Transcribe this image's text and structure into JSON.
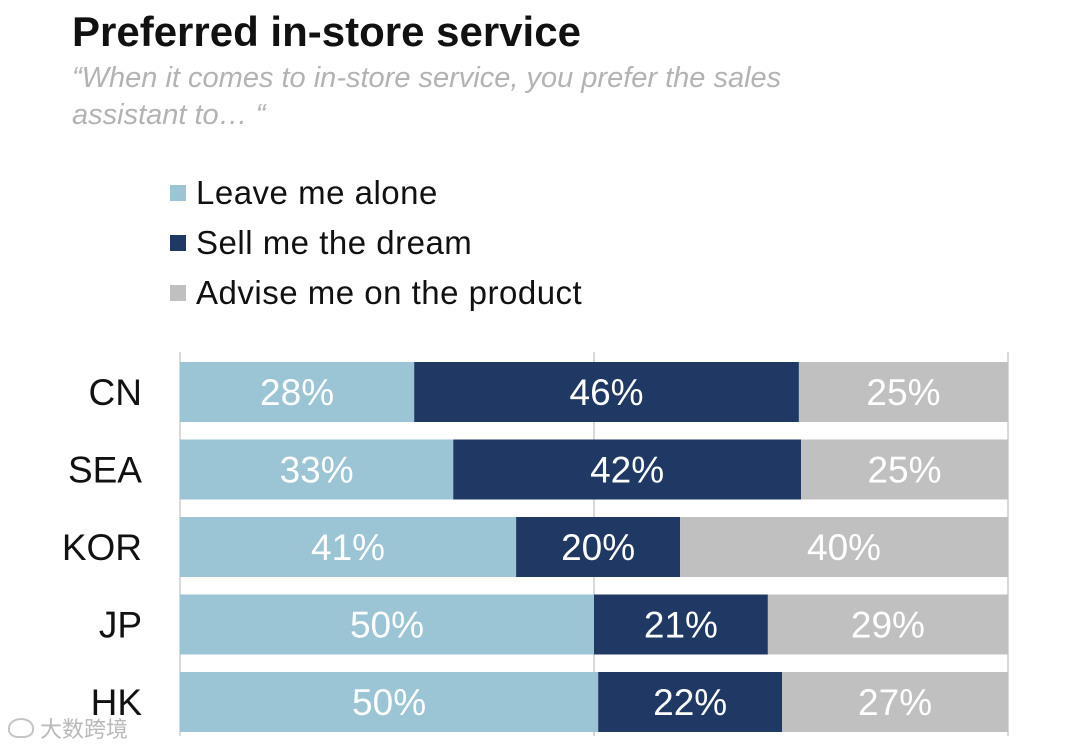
{
  "chart_data": {
    "type": "bar",
    "orientation": "horizontal",
    "stacked": true,
    "title": "Preferred in-store service",
    "subtitle": "“When it comes to in-store service, you prefer the sales assistant to… “",
    "categories": [
      "CN",
      "SEA",
      "KOR",
      "JP",
      "HK"
    ],
    "series": [
      {
        "name": "Leave me alone",
        "color": "#9bc4d4",
        "values": [
          28,
          33,
          41,
          50,
          50
        ],
        "labels": [
          "28%",
          "33%",
          "41%",
          "50%",
          "50%"
        ]
      },
      {
        "name": "Sell me the dream",
        "color": "#1f3864",
        "values": [
          46,
          42,
          20,
          21,
          22
        ],
        "labels": [
          "46%",
          "42%",
          "20%",
          "21%",
          "22%"
        ]
      },
      {
        "name": "Advise me on the product",
        "color": "#c0c0c0",
        "values": [
          25,
          25,
          40,
          29,
          27
        ],
        "labels": [
          "25%",
          "25%",
          "40%",
          "29%",
          "27%"
        ]
      }
    ],
    "xlim": [
      0,
      100
    ],
    "grid": true,
    "legend": "top-left"
  },
  "watermark": "大数跨境"
}
